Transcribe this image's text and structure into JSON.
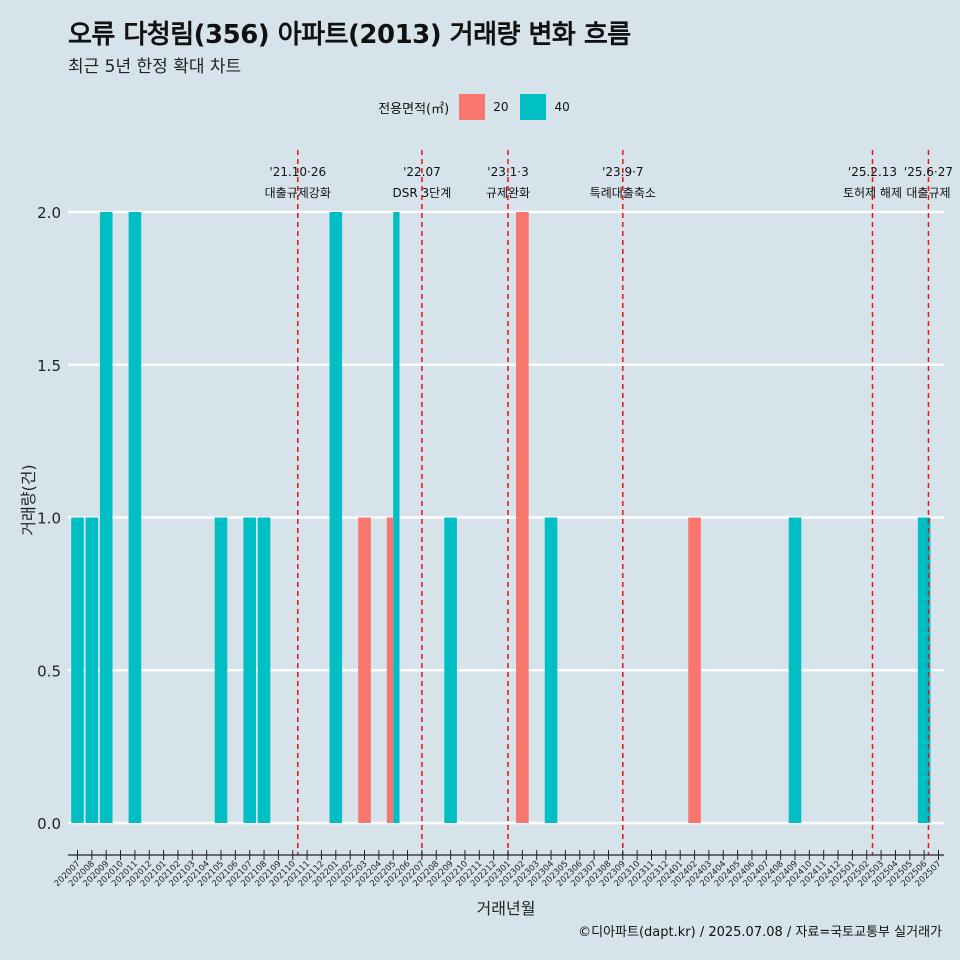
{
  "title": "오류 다청림(356) 아파트(2013) 거래량 변화 흐름",
  "subtitle": "최근 5년 한정 확대 차트",
  "caption": "©디아파트(dapt.kr) / 2025.07.08 / 자료=국토교통부 실거래가",
  "legend": {
    "title": "전용면적(㎡)",
    "items": [
      {
        "label": "20",
        "color": "#f8766d"
      },
      {
        "label": "40",
        "color": "#00bfc4"
      }
    ]
  },
  "chart_data": {
    "type": "bar",
    "xlabel": "거래년월",
    "ylabel": "거래량(건)",
    "ylim": [
      0,
      2
    ],
    "y_ticks": [
      "0.0",
      "0.5",
      "1.0",
      "1.5",
      "2.0"
    ],
    "categories": [
      "202007",
      "202008",
      "202009",
      "202010",
      "202011",
      "202012",
      "202101",
      "202102",
      "202103",
      "202104",
      "202105",
      "202106",
      "202107",
      "202108",
      "202109",
      "202110",
      "202111",
      "202112",
      "202201",
      "202202",
      "202203",
      "202204",
      "202205",
      "202206",
      "202207",
      "202208",
      "202209",
      "202210",
      "202211",
      "202212",
      "202301",
      "202302",
      "202303",
      "202304",
      "202305",
      "202306",
      "202307",
      "202308",
      "202309",
      "202310",
      "202311",
      "202312",
      "202401",
      "202402",
      "202403",
      "202404",
      "202405",
      "202406",
      "202407",
      "202408",
      "202409",
      "202410",
      "202411",
      "202412",
      "202501",
      "202502",
      "202503",
      "202504",
      "202505",
      "202506",
      "202507"
    ],
    "bars": [
      {
        "month": "202007",
        "area": "40",
        "value": 1
      },
      {
        "month": "202008",
        "area": "40",
        "value": 1
      },
      {
        "month": "202009",
        "area": "40",
        "value": 2
      },
      {
        "month": "202011",
        "area": "40",
        "value": 2
      },
      {
        "month": "202105",
        "area": "40",
        "value": 1
      },
      {
        "month": "202107",
        "area": "40",
        "value": 1
      },
      {
        "month": "202108",
        "area": "40",
        "value": 1
      },
      {
        "month": "202201",
        "area": "40",
        "value": 2
      },
      {
        "month": "202203",
        "area": "20",
        "value": 1
      },
      {
        "month": "202205",
        "area": "20",
        "value": 1
      },
      {
        "month": "202205",
        "area": "40",
        "value": 2
      },
      {
        "month": "202209",
        "area": "40",
        "value": 1
      },
      {
        "month": "202302",
        "area": "20",
        "value": 2
      },
      {
        "month": "202304",
        "area": "40",
        "value": 1
      },
      {
        "month": "202402",
        "area": "20",
        "value": 1
      },
      {
        "month": "202409",
        "area": "40",
        "value": 1
      },
      {
        "month": "202506",
        "area": "40",
        "value": 1
      }
    ],
    "events": [
      {
        "month": "202110",
        "offset": 0.35,
        "date": "'21.10·26",
        "label": "대출규제강화"
      },
      {
        "month": "202207",
        "offset": 0.0,
        "date": "'22.07",
        "label": "DSR 3단계"
      },
      {
        "month": "202301",
        "offset": 0.0,
        "date": "'23.1·3",
        "label": "규제완화"
      },
      {
        "month": "202309",
        "offset": 0.0,
        "date": "'23.9·7",
        "label": "특례대출축소"
      },
      {
        "month": "202502",
        "offset": 0.4,
        "date": "'25.2.13",
        "label": "토허제 해제"
      },
      {
        "month": "202506",
        "offset": 0.3,
        "date": "'25.6·27",
        "label": "대출규제"
      }
    ]
  }
}
